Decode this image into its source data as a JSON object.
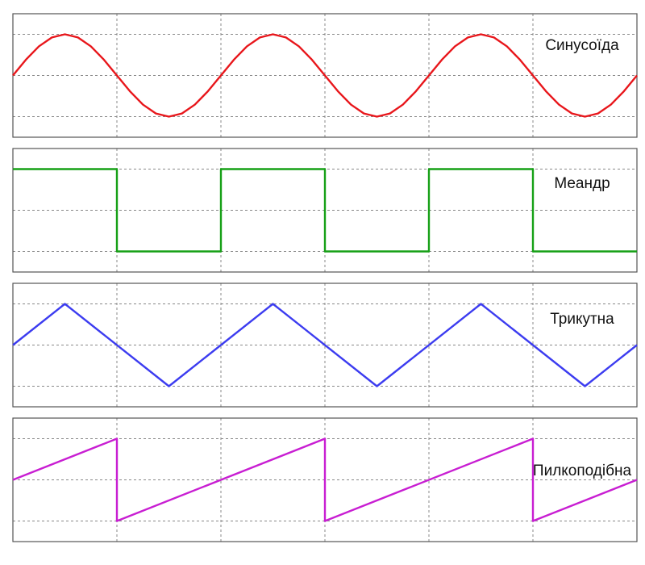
{
  "chart_data": [
    {
      "type": "line",
      "title": "Синусоїда",
      "color": "#e8161b",
      "x": [
        0,
        0.125,
        0.25,
        0.375,
        0.5,
        0.625,
        0.75,
        0.875,
        1,
        1.125,
        1.25,
        1.375,
        1.5,
        1.625,
        1.75,
        1.875,
        2,
        2.125,
        2.25,
        2.375,
        2.5,
        2.625,
        2.75,
        2.875,
        3,
        3.125,
        3.25,
        3.375,
        3.5,
        3.625,
        3.75,
        3.875,
        4,
        4.125,
        4.25,
        4.375,
        4.5,
        4.625,
        4.75,
        4.875,
        5,
        5.125,
        5.25,
        5.375,
        5.5,
        5.625,
        5.75,
        5.875,
        6
      ],
      "values": [
        0,
        0.383,
        0.707,
        0.924,
        1,
        0.924,
        0.707,
        0.383,
        0,
        -0.383,
        -0.707,
        -0.924,
        -1,
        -0.924,
        -0.707,
        -0.383,
        0,
        0.383,
        0.707,
        0.924,
        1,
        0.924,
        0.707,
        0.383,
        0,
        -0.383,
        -0.707,
        -0.924,
        -1,
        -0.924,
        -0.707,
        -0.383,
        0,
        0.383,
        0.707,
        0.924,
        1,
        0.924,
        0.707,
        0.383,
        0,
        -0.383,
        -0.707,
        -0.924,
        -1,
        -0.924,
        -0.707,
        -0.383,
        0
      ],
      "xlim": [
        0,
        6
      ],
      "xticks": [
        0,
        1,
        2,
        3,
        4,
        5,
        6
      ],
      "ylim": [
        -1.5,
        1.5
      ],
      "yticks": [
        -1,
        0,
        1
      ],
      "grid": true
    },
    {
      "type": "line",
      "title": "Меандр",
      "color": "#16a016",
      "x": [
        0,
        1,
        1,
        2,
        2,
        3,
        3,
        4,
        4,
        5,
        5,
        6
      ],
      "values": [
        1,
        1,
        -1,
        -1,
        1,
        1,
        -1,
        -1,
        1,
        1,
        -1,
        -1
      ],
      "xlim": [
        0,
        6
      ],
      "xticks": [
        0,
        1,
        2,
        3,
        4,
        5,
        6
      ],
      "ylim": [
        -1.5,
        1.5
      ],
      "yticks": [
        -1,
        0,
        1
      ],
      "grid": true
    },
    {
      "type": "line",
      "title": "Трикутна",
      "color": "#3c3cf0",
      "x": [
        0,
        0.5,
        1.5,
        2.5,
        3.5,
        4.5,
        5.5,
        6
      ],
      "values": [
        0,
        1,
        -1,
        1,
        -1,
        1,
        -1,
        0
      ],
      "xlim": [
        0,
        6
      ],
      "xticks": [
        0,
        1,
        2,
        3,
        4,
        5,
        6
      ],
      "ylim": [
        -1.5,
        1.5
      ],
      "yticks": [
        -1,
        0,
        1
      ],
      "grid": true
    },
    {
      "type": "line",
      "title": "Пилкоподібна",
      "color": "#c81ed2",
      "x": [
        0,
        1,
        1,
        3,
        3,
        5,
        5,
        6
      ],
      "values": [
        0,
        1,
        -1,
        1,
        -1,
        1,
        -1,
        0
      ],
      "xlim": [
        0,
        6
      ],
      "xticks": [
        0,
        1,
        2,
        3,
        4,
        5,
        6
      ],
      "ylim": [
        -1.5,
        1.5
      ],
      "yticks": [
        -1,
        0,
        1
      ],
      "grid": true
    }
  ]
}
